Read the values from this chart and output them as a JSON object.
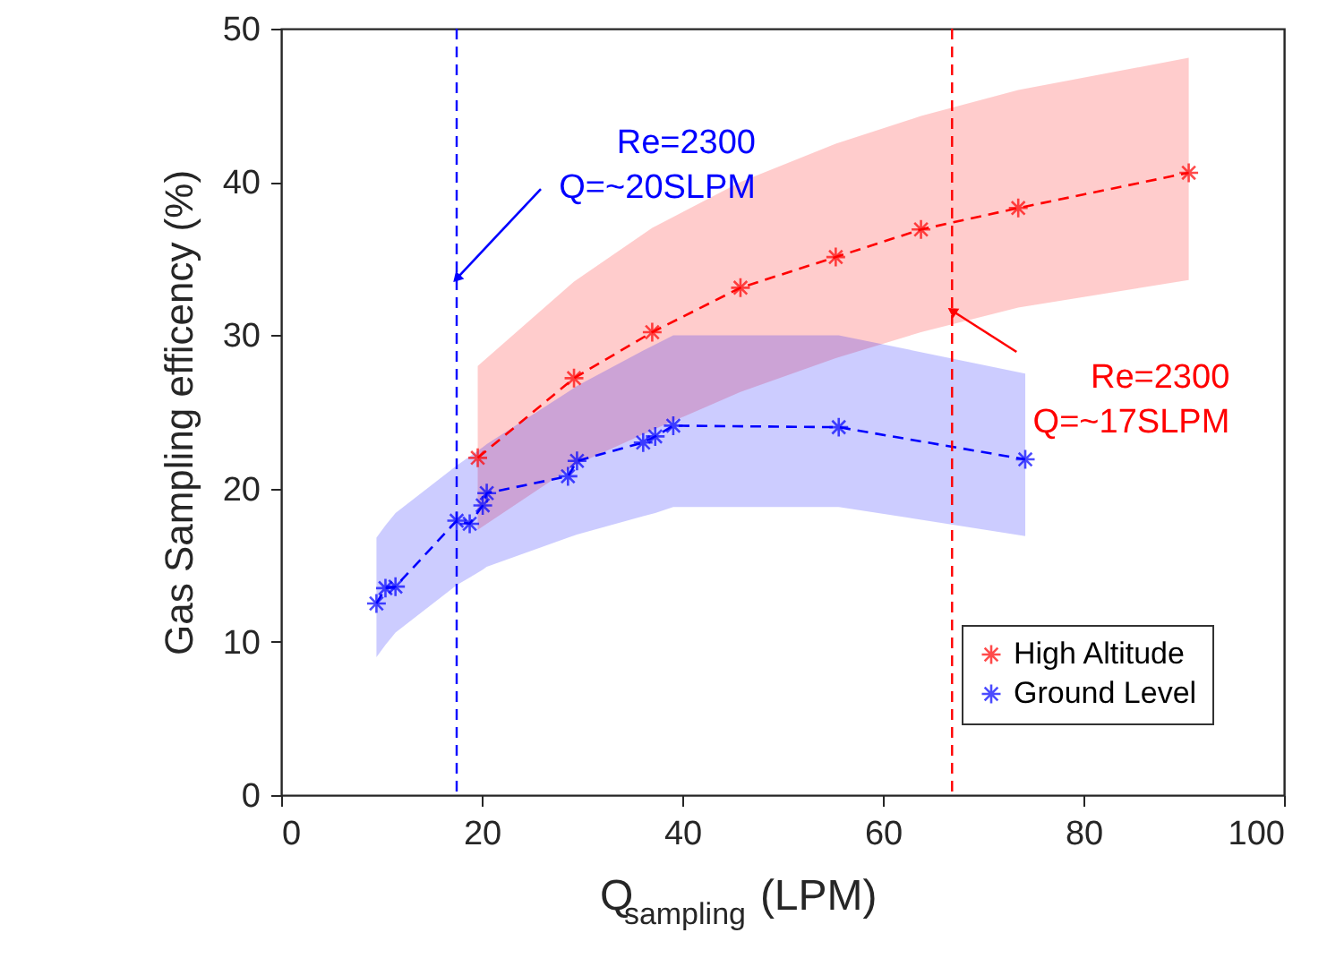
{
  "chart_data": {
    "type": "line",
    "xlabel": "Q$_{sampling}$ (LPM)",
    "ylabel": "Gas Sampling efficency (%)",
    "xlim": [
      0,
      100
    ],
    "xticks": [
      0,
      20,
      40,
      60,
      80,
      100
    ],
    "ylim": [
      0,
      50
    ],
    "yticks": [
      0,
      10,
      20,
      30,
      40,
      50
    ],
    "grid": false,
    "legend": "bottom right",
    "marker": "cross",
    "line_style": "dashed",
    "series": [
      {
        "name": "High Altitude",
        "color": "#ff0000",
        "x": [
          19.6,
          29.2,
          37.0,
          45.8,
          55.3,
          63.8,
          73.5,
          90.5
        ],
        "values": [
          22.0,
          27.2,
          30.2,
          33.1,
          35.1,
          36.9,
          38.3,
          40.6
        ],
        "lower": [
          17.3,
          21.5,
          23.8,
          26.3,
          28.5,
          30.2,
          31.8,
          33.6
        ],
        "upper": [
          28.0,
          33.5,
          37.0,
          40.0,
          42.5,
          44.3,
          46.0,
          48.1
        ]
      },
      {
        "name": "Ground Level",
        "color": "#0000ff",
        "x": [
          9.5,
          10.4,
          11.4,
          17.5,
          18.8,
          20.1,
          20.5,
          28.6,
          29.5,
          36.1,
          37.3,
          39.1,
          55.6,
          74.2
        ],
        "values": [
          12.5,
          13.5,
          13.6,
          17.9,
          17.7,
          18.9,
          19.7,
          20.8,
          21.8,
          23.0,
          23.4,
          24.1,
          24.0,
          21.9
        ],
        "lower": [
          9.0,
          9.8,
          10.6,
          13.7,
          14.2,
          14.7,
          14.9,
          16.8,
          17.0,
          18.2,
          18.4,
          18.8,
          18.8,
          16.9
        ],
        "upper": [
          16.8,
          17.6,
          18.4,
          21.5,
          22.1,
          22.7,
          22.9,
          26.3,
          26.7,
          29.0,
          29.4,
          30.0,
          30.0,
          27.5
        ]
      }
    ],
    "ref_lines": [
      {
        "axis": "x",
        "value": 17.5,
        "label": null,
        "color": "#0000ff",
        "line_style": "dashed"
      },
      {
        "axis": "x",
        "value": 66.9,
        "label": null,
        "color": "#ff0000",
        "line_style": "dashed"
      }
    ],
    "annotations": [
      {
        "text": "Re=2300\nQ=~20SLPM",
        "x": 17.5,
        "y": 33.7
      },
      {
        "text": "Re=2300\nQ=~17SLPM",
        "x": 66.9,
        "y": 31.6
      }
    ]
  }
}
